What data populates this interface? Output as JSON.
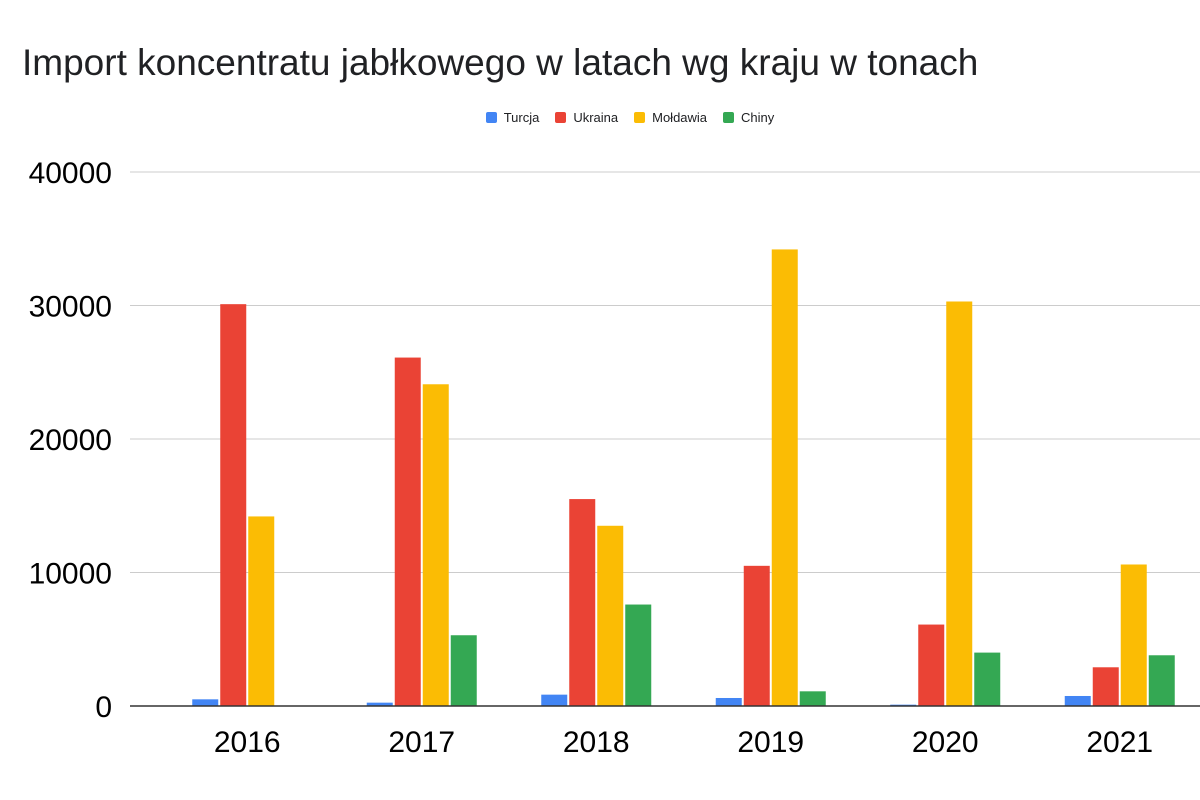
{
  "chart_data": {
    "type": "bar",
    "title": "Import koncentratu jabłkowego w latach wg kraju w tonach",
    "xlabel": "",
    "ylabel": "",
    "categories": [
      "2016",
      "2017",
      "2018",
      "2019",
      "2020",
      "2021"
    ],
    "series": [
      {
        "name": "Turcja",
        "color": "#4285F4",
        "values": [
          500,
          250,
          850,
          600,
          100,
          750
        ]
      },
      {
        "name": "Ukraina",
        "color": "#EA4335",
        "values": [
          30100,
          26100,
          15500,
          10500,
          6100,
          2900
        ]
      },
      {
        "name": "Mołdawia",
        "color": "#FBBC04",
        "values": [
          14200,
          24100,
          13500,
          34200,
          30300,
          10600
        ]
      },
      {
        "name": "Chiny",
        "color": "#34A853",
        "values": [
          0,
          5300,
          7600,
          1100,
          4000,
          3800
        ]
      }
    ],
    "ylim": [
      0,
      40000
    ],
    "yticks": [
      "0",
      "10000",
      "20000",
      "30000",
      "40000"
    ],
    "grid": true,
    "legend_position": "top"
  }
}
